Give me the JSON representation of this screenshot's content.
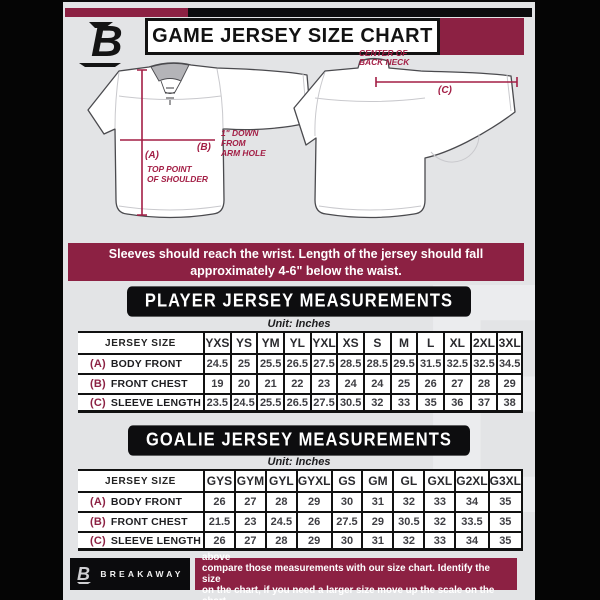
{
  "header": {
    "title": "GAME JERSEY SIZE CHART",
    "brand": "BREAKAWAY"
  },
  "diagram": {
    "label_a": "(A)",
    "label_a_desc1": "TOP POINT",
    "label_a_desc2": "OF SHOULDER",
    "label_b": "(B)",
    "label_b_desc1": "1\" DOWN",
    "label_b_desc2": "FROM",
    "label_b_desc3": "ARM HOLE",
    "label_c": "(C)",
    "label_c_desc1": "CENTER OF",
    "label_c_desc2": "BACK NECK"
  },
  "notice": {
    "line1": "Sleeves should reach the wrist. Length of the jersey should fall",
    "line2": "approximately 4-6\" below the waist."
  },
  "player_section": {
    "title": "PLAYER JERSEY MEASUREMENTS",
    "unit": "Unit: Inches",
    "table": {
      "corner_label": "JERSEY SIZE",
      "sizes": [
        "YXS",
        "YS",
        "YM",
        "YL",
        "YXL",
        "XS",
        "S",
        "M",
        "L",
        "XL",
        "2XL",
        "3XL"
      ],
      "rows": [
        {
          "key": "(A)",
          "label": "BODY FRONT",
          "values": [
            "24.5",
            "25",
            "25.5",
            "26.5",
            "27.5",
            "28.5",
            "28.5",
            "29.5",
            "31.5",
            "32.5",
            "32.5",
            "34.5"
          ]
        },
        {
          "key": "(B)",
          "label": "FRONT CHEST",
          "values": [
            "19",
            "20",
            "21",
            "22",
            "23",
            "24",
            "24",
            "25",
            "26",
            "27",
            "28",
            "29"
          ]
        },
        {
          "key": "(C)",
          "label": "SLEEVE LENGTH",
          "values": [
            "23.5",
            "24.5",
            "25.5",
            "26.5",
            "27.5",
            "30.5",
            "32",
            "33",
            "35",
            "36",
            "37",
            "38"
          ]
        }
      ]
    }
  },
  "goalie_section": {
    "title": "GOALIE JERSEY MEASUREMENTS",
    "unit": "Unit: Inches",
    "table": {
      "corner_label": "JERSEY SIZE",
      "sizes": [
        "GYS",
        "GYM",
        "GYL",
        "GYXL",
        "GS",
        "GM",
        "GL",
        "GXL",
        "G2XL",
        "G3XL"
      ],
      "rows": [
        {
          "key": "(A)",
          "label": "BODY FRONT",
          "values": [
            "26",
            "27",
            "28",
            "29",
            "30",
            "31",
            "32",
            "33",
            "34",
            "35"
          ]
        },
        {
          "key": "(B)",
          "label": "FRONT CHEST",
          "values": [
            "21.5",
            "23",
            "24.5",
            "26",
            "27.5",
            "29",
            "30.5",
            "32",
            "33.5",
            "35"
          ]
        },
        {
          "key": "(C)",
          "label": "SLEEVE LENGTH",
          "values": [
            "26",
            "27",
            "28",
            "29",
            "30",
            "31",
            "32",
            "33",
            "34",
            "35"
          ]
        }
      ]
    }
  },
  "footer": {
    "brand": "BREAKAWAY",
    "line1": "Take the measurements from last seasons jersey as instructed above",
    "line2": "compare those measurements  with our size chart. Identify the size",
    "line3": "on the chart, if you need a larger size move up the scale on the chart"
  },
  "watermark_letter": "B",
  "colors": {
    "maroon": "#8c2143",
    "annotation": "#a31e45",
    "black": "#0c0c0e",
    "card_bg": "#e3e4e6"
  }
}
